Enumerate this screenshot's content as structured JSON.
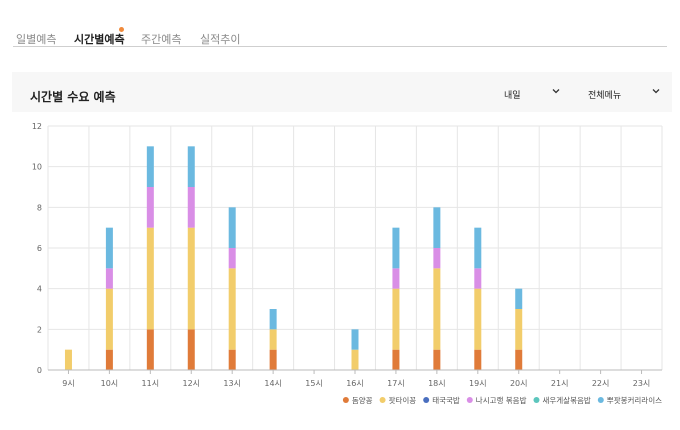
{
  "tabs": [
    {
      "label": "일별예측",
      "active": false
    },
    {
      "label": "시간별예측",
      "active": true
    },
    {
      "label": "주간예측",
      "active": false
    },
    {
      "label": "실적추이",
      "active": false
    }
  ],
  "card": {
    "title": "시간별 수요 예측",
    "day_select": "내일",
    "menu_select": "전체메뉴"
  },
  "chart_data": {
    "type": "bar",
    "stacked": true,
    "categories": [
      "9시",
      "10시",
      "11시",
      "12시",
      "13시",
      "14시",
      "15시",
      "16시",
      "17시",
      "18시",
      "19시",
      "20시",
      "21시",
      "22시",
      "23시"
    ],
    "ylim": [
      0,
      12
    ],
    "yticks": [
      0,
      2,
      4,
      6,
      8,
      10,
      12
    ],
    "grid": true,
    "legend_position": "bottom-right",
    "series": [
      {
        "name": "돔양꽁",
        "color": "#e07b39",
        "values": [
          0,
          1,
          2,
          2,
          1,
          1,
          0,
          0,
          1,
          1,
          1,
          1,
          0,
          0,
          0
        ]
      },
      {
        "name": "팟타이꽁",
        "color": "#f2cd6b",
        "values": [
          1,
          3,
          5,
          5,
          4,
          1,
          0,
          1,
          3,
          4,
          3,
          2,
          0,
          0,
          0
        ]
      },
      {
        "name": "태국국밥",
        "color": "#4a6fbf",
        "values": [
          0,
          0,
          0,
          0,
          0,
          0,
          0,
          0,
          0,
          0,
          0,
          0,
          0,
          0,
          0
        ]
      },
      {
        "name": "나시고랭 볶음밥",
        "color": "#d98ee6",
        "values": [
          0,
          1,
          2,
          2,
          1,
          0,
          0,
          0,
          1,
          1,
          1,
          0,
          0,
          0,
          0
        ]
      },
      {
        "name": "새우게살볶음밥",
        "color": "#5cc6bd",
        "values": [
          0,
          0,
          0,
          0,
          0,
          0,
          0,
          0,
          0,
          0,
          0,
          0,
          0,
          0,
          0
        ]
      },
      {
        "name": "뿌팟봉커리라이스",
        "color": "#6bb9e0",
        "values": [
          0,
          2,
          2,
          2,
          2,
          1,
          0,
          1,
          2,
          2,
          2,
          1,
          0,
          0,
          0
        ]
      }
    ]
  }
}
